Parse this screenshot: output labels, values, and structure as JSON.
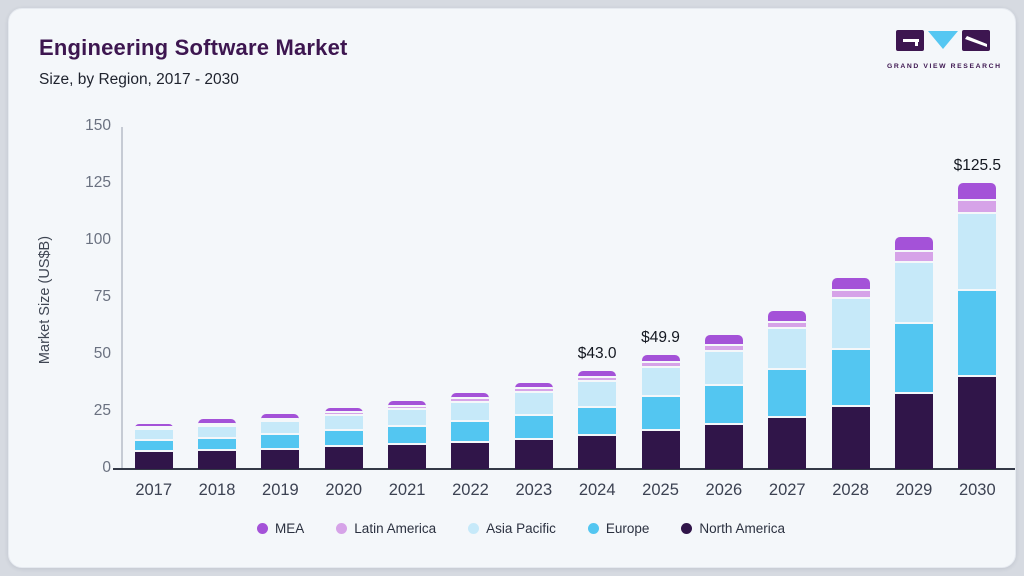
{
  "header": {
    "title": "Engineering Software Market",
    "subtitle": "Size, by Region, 2017 - 2030",
    "logo_text": "GRAND VIEW RESEARCH"
  },
  "chart_data": {
    "type": "bar",
    "stacked": true,
    "title": "Engineering Software Market Size, by Region, 2017 - 2030",
    "xlabel": "",
    "ylabel": "Market Size (US$B)",
    "ylim": [
      0,
      150
    ],
    "yticks": [
      0,
      25,
      50,
      75,
      100,
      125,
      150
    ],
    "grid": false,
    "legend_position": "bottom",
    "categories": [
      "2017",
      "2018",
      "2019",
      "2020",
      "2021",
      "2022",
      "2023",
      "2024",
      "2025",
      "2026",
      "2027",
      "2028",
      "2029",
      "2030"
    ],
    "series": [
      {
        "name": "North America",
        "color": "#301549",
        "values": [
          7.3,
          7.8,
          8.5,
          9.5,
          10.4,
          11.2,
          12.7,
          14.4,
          16.6,
          19.5,
          22.5,
          27.1,
          32.7,
          40.2
        ]
      },
      {
        "name": "Europe",
        "color": "#53c6f1",
        "values": [
          5.0,
          5.5,
          6.2,
          7.2,
          8.0,
          9.2,
          10.7,
          12.5,
          14.9,
          16.8,
          20.9,
          24.9,
          30.7,
          37.9
        ]
      },
      {
        "name": "Asia Pacific",
        "color": "#c6e9f9",
        "values": [
          4.6,
          5.2,
          5.8,
          6.6,
          7.5,
          8.6,
          9.9,
          11.4,
          12.9,
          15.1,
          17.9,
          22.4,
          27.1,
          33.7
        ]
      },
      {
        "name": "Latin America",
        "color": "#d6a3e8",
        "values": [
          0.9,
          1.0,
          1.1,
          1.2,
          1.4,
          1.5,
          1.6,
          1.8,
          1.9,
          2.4,
          2.9,
          3.6,
          4.6,
          5.7
        ]
      },
      {
        "name": "MEA",
        "color": "#a452d8",
        "values": [
          2.0,
          2.3,
          2.4,
          2.4,
          2.7,
          2.9,
          2.9,
          2.9,
          3.6,
          4.8,
          5.1,
          5.7,
          6.8,
          8.0
        ]
      }
    ],
    "totals": [
      19.8,
      21.8,
      24.0,
      26.9,
      30.0,
      33.4,
      37.8,
      43.0,
      49.9,
      58.6,
      69.3,
      83.7,
      101.9,
      125.5
    ],
    "total_labels": {
      "2024": "$43.0",
      "2025": "$49.9",
      "2030": "$125.5"
    },
    "legend_order": [
      "MEA",
      "Latin America",
      "Asia Pacific",
      "Europe",
      "North America"
    ]
  },
  "colors": {
    "page_background": "#d6dae1",
    "card_background": "#f4f7fa",
    "title": "#3d1650",
    "axis_line": "#343947",
    "logo_accent": "#56c7f2"
  }
}
